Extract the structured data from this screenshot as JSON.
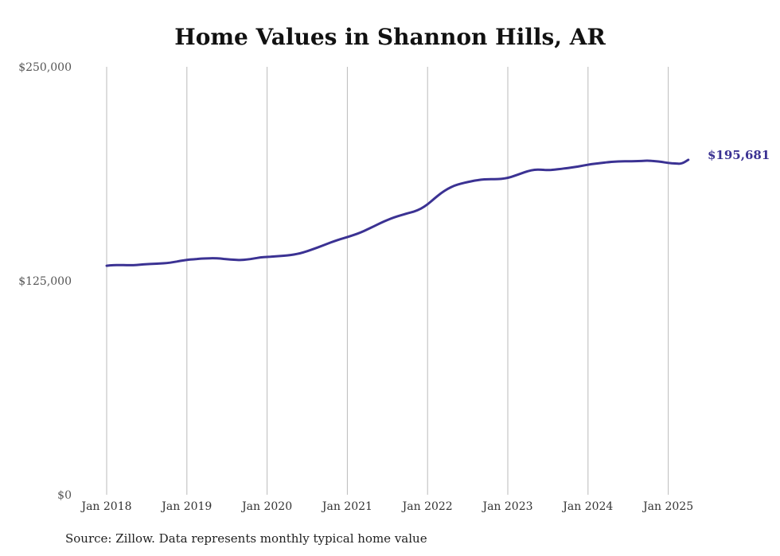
{
  "title": "Home Values in Shannon Hills, AR",
  "source": "Source: Zillow. Data represents monthly typical home value",
  "colors": {
    "line": "#3b3293",
    "grid": "#bbbbbb"
  },
  "chart_data": {
    "type": "line",
    "title": "Home Values in Shannon Hills, AR",
    "xlabel": "",
    "ylabel": "",
    "ylim": [
      0,
      250000
    ],
    "y_ticks": [
      {
        "value": 0,
        "label": "$0"
      },
      {
        "value": 125000,
        "label": "$125,000"
      },
      {
        "value": 250000,
        "label": "$250,000"
      }
    ],
    "x_ticks": [
      {
        "value": "2018-01",
        "label": "Jan 2018"
      },
      {
        "value": "2019-01",
        "label": "Jan 2019"
      },
      {
        "value": "2020-01",
        "label": "Jan 2020"
      },
      {
        "value": "2021-01",
        "label": "Jan 2021"
      },
      {
        "value": "2022-01",
        "label": "Jan 2022"
      },
      {
        "value": "2023-01",
        "label": "Jan 2023"
      },
      {
        "value": "2024-01",
        "label": "Jan 2024"
      },
      {
        "value": "2025-01",
        "label": "Jan 2025"
      }
    ],
    "grid": "vertical",
    "end_label": "$195,681",
    "series": [
      {
        "x": [
          "2018-01",
          "2018-02",
          "2018-03",
          "2018-04",
          "2018-05",
          "2018-06",
          "2018-07",
          "2018-08",
          "2018-09",
          "2018-10",
          "2018-11",
          "2018-12",
          "2019-01",
          "2019-02",
          "2019-03",
          "2019-04",
          "2019-05",
          "2019-06",
          "2019-07",
          "2019-08",
          "2019-09",
          "2019-10",
          "2019-11",
          "2019-12",
          "2020-01",
          "2020-02",
          "2020-03",
          "2020-04",
          "2020-05",
          "2020-06",
          "2020-07",
          "2020-08",
          "2020-09",
          "2020-10",
          "2020-11",
          "2020-12",
          "2021-01",
          "2021-02",
          "2021-03",
          "2021-04",
          "2021-05",
          "2021-06",
          "2021-07",
          "2021-08",
          "2021-09",
          "2021-10",
          "2021-11",
          "2021-12",
          "2022-01",
          "2022-02",
          "2022-03",
          "2022-04",
          "2022-05",
          "2022-06",
          "2022-07",
          "2022-08",
          "2022-09",
          "2022-10",
          "2022-11",
          "2022-12",
          "2023-01",
          "2023-02",
          "2023-03",
          "2023-04",
          "2023-05",
          "2023-06",
          "2023-07",
          "2023-08",
          "2023-09",
          "2023-10",
          "2023-11",
          "2023-12",
          "2024-01",
          "2024-02",
          "2024-03",
          "2024-04",
          "2024-05",
          "2024-06",
          "2024-07",
          "2024-08",
          "2024-09",
          "2024-10",
          "2024-11",
          "2024-12",
          "2025-01",
          "2025-02",
          "2025-03",
          "2025-04"
        ],
        "values": [
          133800,
          134200,
          134200,
          134100,
          134100,
          134400,
          134700,
          134900,
          135100,
          135300,
          135900,
          136600,
          137200,
          137600,
          137900,
          138100,
          138200,
          138000,
          137600,
          137300,
          137100,
          137400,
          138000,
          138700,
          139000,
          139200,
          139500,
          139800,
          140300,
          141100,
          142300,
          143700,
          145100,
          146600,
          148100,
          149400,
          150500,
          151800,
          153200,
          155000,
          156900,
          158800,
          160500,
          162100,
          163300,
          164400,
          165400,
          167000,
          169600,
          173000,
          176200,
          178700,
          180600,
          181800,
          182700,
          183500,
          184100,
          184400,
          184400,
          184500,
          185100,
          186300,
          187700,
          189100,
          189900,
          189900,
          189700,
          189900,
          190400,
          190900,
          191400,
          192100,
          192800,
          193400,
          193800,
          194300,
          194600,
          194800,
          194800,
          194900,
          195000,
          195200,
          194900,
          194500,
          193800,
          193500,
          193300,
          195681
        ]
      }
    ]
  }
}
